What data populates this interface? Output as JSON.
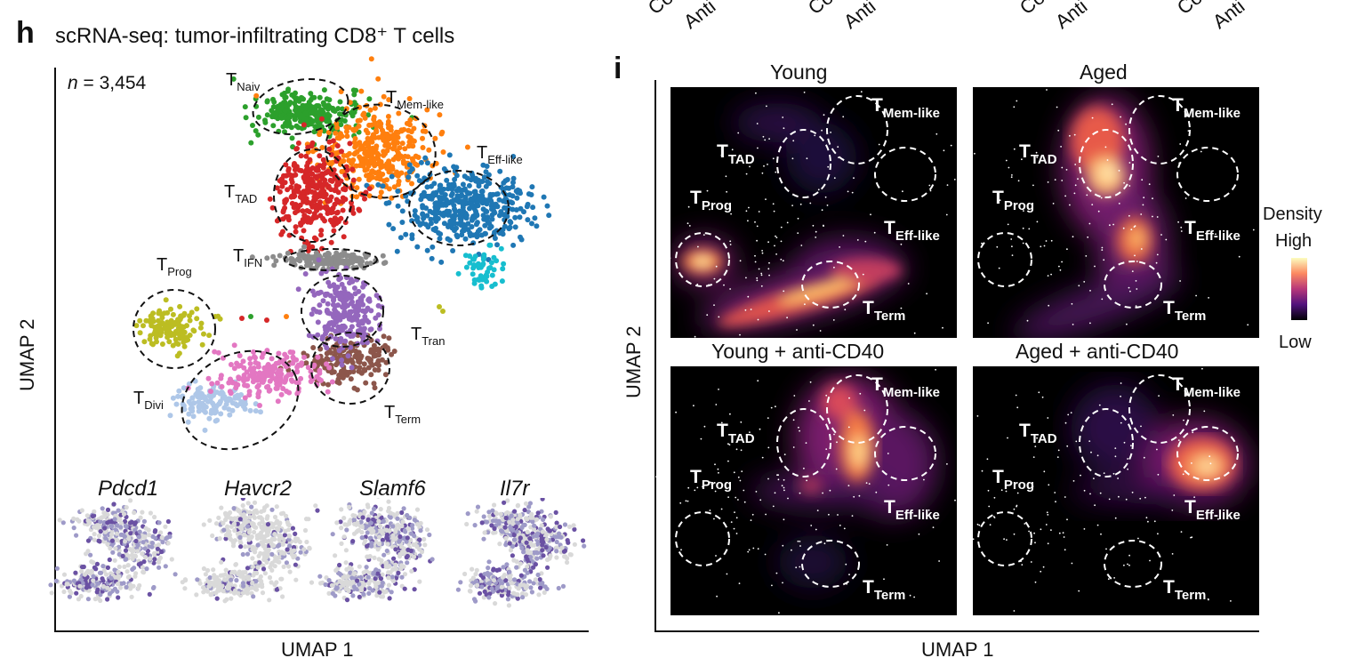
{
  "top_ticks": [
    "Con",
    "Anti",
    "Con",
    "Anti",
    "Con",
    "Anti",
    "Con",
    "Anti"
  ],
  "panel_h": {
    "letter": "h",
    "title": "scRNA-seq: tumor-infiltrating CD8⁺ T cells",
    "n_italic": "n",
    "n_value": "= 3,454",
    "xlabel": "UMAP 1",
    "ylabel": "UMAP 2",
    "clusters": [
      {
        "T": "T",
        "sub": "Naiv",
        "color": "#2ca02c"
      },
      {
        "T": "T",
        "sub": "Mem-like",
        "color": "#ff7f0e"
      },
      {
        "T": "T",
        "sub": "Eff-like",
        "color": "#1f77b4"
      },
      {
        "T": "T",
        "sub": "TAD",
        "color": "#d62728"
      },
      {
        "T": "T",
        "sub": "IFN",
        "color": "#8c8c8c"
      },
      {
        "T": "T",
        "sub": "Prog",
        "color": "#bcbd22"
      },
      {
        "T": "T",
        "sub": "Tran",
        "color": "#17becf"
      },
      {
        "T": "T",
        "sub": "Divi",
        "color": "#aec7e8"
      },
      {
        "T": "T",
        "sub": "Term",
        "color": "#8c564b"
      }
    ],
    "genes": [
      "Pdcd1",
      "Havcr2",
      "Slamf6",
      "Il7r"
    ]
  },
  "panel_i": {
    "letter": "i",
    "xlabel": "UMAP 1",
    "ylabel": "UMAP 2",
    "panels": [
      "Young",
      "Aged",
      "Young + anti-CD40",
      "Aged + anti-CD40"
    ],
    "labels": {
      "mem": "Mem-like",
      "tad": "TAD",
      "prog": "Prog",
      "eff": "Eff-like",
      "term": "Term",
      "T": "T"
    },
    "legend": {
      "title": "Density",
      "high": "High",
      "low": "Low"
    }
  }
}
